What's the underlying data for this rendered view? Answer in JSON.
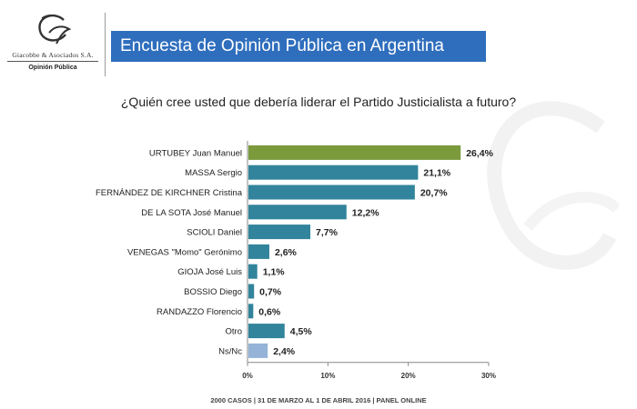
{
  "logo": {
    "name": "Giacobbe & Asociados S.A.",
    "subtitle": "Opinión Pública"
  },
  "header": {
    "title": "Encuesta de Opinión Pública en Argentina"
  },
  "question": "¿Quién cree usted que debería liderar el Partido Justicialista a futuro?",
  "chart_data": {
    "type": "bar",
    "orientation": "horizontal",
    "title": "¿Quién cree usted que debería liderar el Partido Justicialista a futuro?",
    "categories": [
      "URTUBEY Juan Manuel",
      "MASSA Sergio",
      "FERNÁNDEZ DE KIRCHNER Cristina",
      "DE LA SOTA José Manuel",
      "SCIOLI Daniel",
      "VENEGAS \"Momo\" Gerónimo",
      "GIOJA José Luis",
      "BOSSIO Diego",
      "RANDAZZO Florencio",
      "Otro",
      "Ns/Nc"
    ],
    "values": [
      26.4,
      21.1,
      20.7,
      12.2,
      7.7,
      2.6,
      1.1,
      0.7,
      0.6,
      4.5,
      2.4
    ],
    "value_labels": [
      "26,4%",
      "21,1%",
      "20,7%",
      "12,2%",
      "7,7%",
      "2,6%",
      "1,1%",
      "0,7%",
      "0,6%",
      "4,5%",
      "2,4%"
    ],
    "bar_colors": [
      "#7a9a3c",
      "#31849b",
      "#31849b",
      "#31849b",
      "#31849b",
      "#31849b",
      "#31849b",
      "#31849b",
      "#31849b",
      "#31849b",
      "#95b3d7"
    ],
    "xlim": [
      0,
      30
    ],
    "xticks": [
      0,
      10,
      20,
      30
    ],
    "xtick_labels": [
      "0%",
      "10%",
      "20%",
      "30%"
    ],
    "xlabel": "",
    "ylabel": "",
    "grid": false,
    "legend": "none"
  },
  "footer": "2000 CASOS | 31 DE MARZO AL 1 DE  ABRIL 2016 | PANEL ONLINE"
}
